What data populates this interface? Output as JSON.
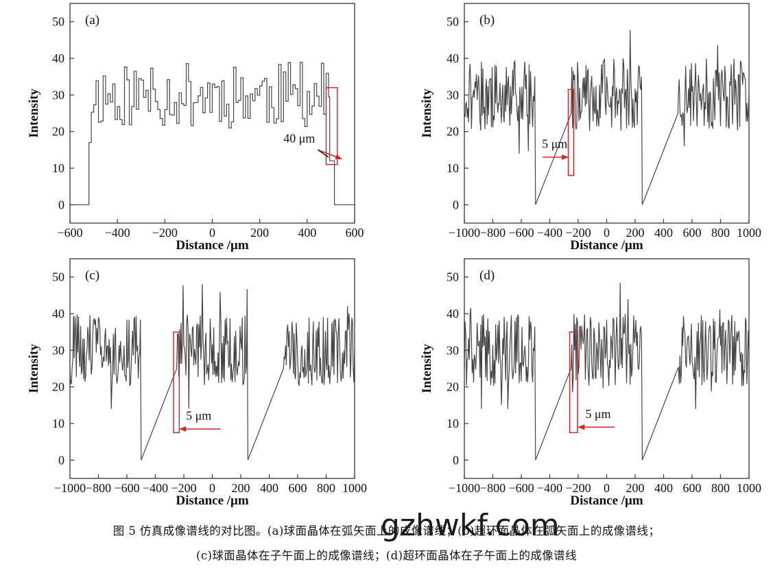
{
  "caption": {
    "line1": "图 5  仿真成像谱线的对比图。(a)球面晶体在弧矢面上的成像谱线；(b)超环面晶体在弧矢面上的成像谱线；",
    "line2": "(c)球面晶体在子午面上的成像谱线；(d)超环面晶体在子午面上的成像谱线"
  },
  "watermark": "gzhwkf.com",
  "colors": {
    "annotation": "#d62728",
    "line": "#333333",
    "axis": "#333333"
  },
  "chart_data": [
    {
      "panel": "(a)",
      "type": "line",
      "xlabel": "Distance /μm",
      "ylabel": "Intensity",
      "xlim": [
        -600,
        600
      ],
      "ylim": [
        -5,
        55
      ],
      "xticks": [
        -600,
        -400,
        -200,
        0,
        200,
        400,
        600
      ],
      "xtick_labels": [
        "−600",
        "−400",
        "−200",
        "0",
        "200",
        "400",
        "600"
      ],
      "yticks": [
        0,
        10,
        20,
        30,
        40,
        50
      ],
      "series": [
        {
          "style": "step",
          "noise_step": 10,
          "segments": [
            {
              "x0": -600,
              "x1": -520,
              "base": 0
            },
            {
              "x0": -520,
              "x1": -510,
              "base": 17
            },
            {
              "x0": -510,
              "x1": 495,
              "base": 30,
              "amp": 9,
              "seed": 11
            },
            {
              "x0": 495,
              "x1": 515,
              "base": 12
            },
            {
              "x0": 515,
              "x1": 600,
              "base": 0
            }
          ]
        }
      ],
      "annotation": {
        "text": "40 μm",
        "box": {
          "x0": 480,
          "x1": 527,
          "y0": 11,
          "y1": 32
        },
        "label_at": [
          300,
          17
        ],
        "arrow_from": [
          445,
          15
        ],
        "arrow_to": [
          545,
          12.5
        ],
        "arrow_dir": "right"
      }
    },
    {
      "panel": "(b)",
      "type": "line",
      "xlabel": "Distance /μm",
      "ylabel": "Intensity",
      "xlim": [
        -1000,
        1000
      ],
      "ylim": [
        -5,
        55
      ],
      "xticks": [
        -1000,
        -800,
        -600,
        -400,
        -200,
        0,
        200,
        400,
        600,
        800,
        1000
      ],
      "xtick_labels": [
        "−1000",
        "−800",
        "−600",
        "−400",
        "−200",
        "0",
        "200",
        "400",
        "600",
        "800",
        "1000"
      ],
      "yticks": [
        0,
        10,
        20,
        30,
        40,
        50
      ],
      "series": [
        {
          "style": "noise",
          "noise_step": 5,
          "segments": [
            {
              "x0": -1000,
              "x1": -500,
              "base": 30,
              "amp": 10,
              "seed": 21
            },
            {
              "x0": -500,
              "x1": -250,
              "base": 0
            },
            {
              "x0": -250,
              "x1": 250,
              "base": 30,
              "amp": 10,
              "seed": 22
            },
            {
              "x0": 250,
              "x1": 500,
              "base": 0
            },
            {
              "x0": 500,
              "x1": 1000,
              "base": 30,
              "amp": 10,
              "seed": 23
            }
          ]
        }
      ],
      "annotation": {
        "text": "5 μm",
        "box": {
          "x0": -270,
          "x1": -232,
          "y0": 8,
          "y1": 31.5
        },
        "label_at": [
          -455,
          15.5
        ],
        "arrow_from": [
          -450,
          13
        ],
        "arrow_to": [
          -272,
          13
        ],
        "arrow_dir": "right"
      }
    },
    {
      "panel": "(c)",
      "type": "line",
      "xlabel": "Distance /μm",
      "ylabel": "Intensity",
      "xlim": [
        -1000,
        1000
      ],
      "ylim": [
        -5,
        55
      ],
      "xticks": [
        -1000,
        -800,
        -600,
        -400,
        -200,
        0,
        200,
        400,
        600,
        800,
        1000
      ],
      "xtick_labels": [
        "−1000",
        "−800",
        "−600",
        "−400",
        "−200",
        "0",
        "200",
        "400",
        "600",
        "800",
        "1000"
      ],
      "yticks": [
        0,
        10,
        20,
        30,
        40,
        50
      ],
      "series": [
        {
          "style": "noise",
          "noise_step": 5,
          "segments": [
            {
              "x0": -1000,
              "x1": -500,
              "base": 30,
              "amp": 10,
              "seed": 31
            },
            {
              "x0": -500,
              "x1": -250,
              "base": 0
            },
            {
              "x0": -250,
              "x1": 250,
              "base": 30,
              "amp": 10,
              "seed": 32
            },
            {
              "x0": 250,
              "x1": 500,
              "base": 0
            },
            {
              "x0": 500,
              "x1": 1000,
              "base": 30,
              "amp": 10,
              "seed": 33
            }
          ]
        }
      ],
      "annotation": {
        "text": "5 μm",
        "box": {
          "x0": -272,
          "x1": -232,
          "y0": 7.5,
          "y1": 35
        },
        "label_at": [
          -185,
          11
        ],
        "arrow_from": [
          60,
          8.5
        ],
        "arrow_to": [
          -228,
          8.5
        ],
        "arrow_dir": "left"
      }
    },
    {
      "panel": "(d)",
      "type": "line",
      "xlabel": "Distance /μm",
      "ylabel": "Intensity",
      "xlim": [
        -1000,
        1000
      ],
      "ylim": [
        -5,
        55
      ],
      "xticks": [
        -1000,
        -800,
        -600,
        -400,
        -200,
        0,
        200,
        400,
        600,
        800,
        1000
      ],
      "xtick_labels": [
        "−1000",
        "−800",
        "−600",
        "−400",
        "−200",
        "0",
        "200",
        "400",
        "600",
        "800",
        "1000"
      ],
      "yticks": [
        0,
        10,
        20,
        30,
        40,
        50
      ],
      "series": [
        {
          "style": "noise",
          "noise_step": 5,
          "segments": [
            {
              "x0": -1000,
              "x1": -500,
              "base": 30,
              "amp": 10,
              "seed": 41
            },
            {
              "x0": -500,
              "x1": -250,
              "base": 0
            },
            {
              "x0": -250,
              "x1": 250,
              "base": 30,
              "amp": 10,
              "seed": 42
            },
            {
              "x0": 250,
              "x1": 500,
              "base": 0
            },
            {
              "x0": 500,
              "x1": 1000,
              "base": 30,
              "amp": 10,
              "seed": 43
            }
          ]
        }
      ],
      "annotation": {
        "text": "5 μm",
        "box": {
          "x0": -260,
          "x1": -205,
          "y0": 7.5,
          "y1": 35
        },
        "label_at": [
          -150,
          11.5
        ],
        "arrow_from": [
          55,
          9
        ],
        "arrow_to": [
          -198,
          9
        ],
        "arrow_dir": "left"
      }
    }
  ]
}
